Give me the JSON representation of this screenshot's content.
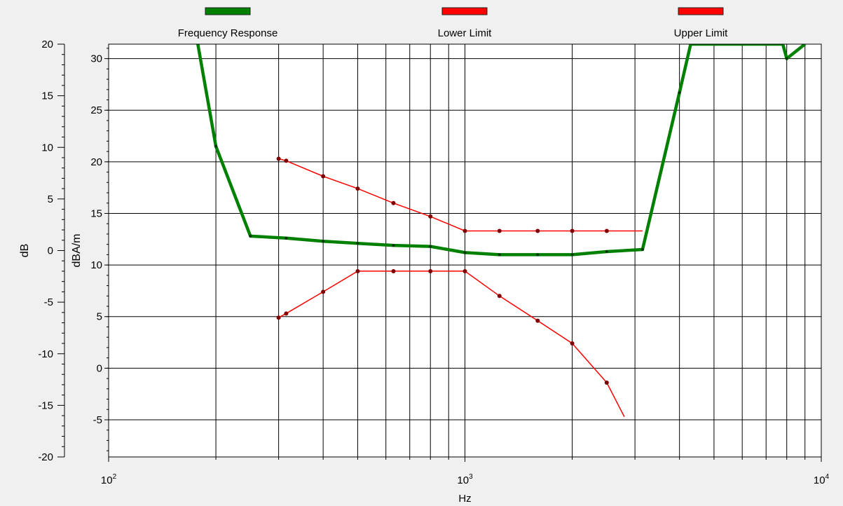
{
  "chart_data": {
    "type": "line",
    "xscale": "log",
    "xlabel": "Hz",
    "xlim": [
      100,
      10000
    ],
    "x_ticks": [
      100,
      1000,
      10000
    ],
    "x_tick_labels": [
      {
        "base": "10",
        "exp": "2"
      },
      {
        "base": "10",
        "exp": "3"
      },
      {
        "base": "10",
        "exp": "4"
      }
    ],
    "y_left": {
      "label": "dB",
      "lim": [
        -20,
        20
      ],
      "ticks": [
        -20,
        -15,
        -10,
        -5,
        0,
        5,
        10,
        15,
        20
      ],
      "tick_labels": [
        "-20",
        "-15",
        "-10",
        "-5",
        "0",
        "5",
        "10",
        "15",
        "20"
      ]
    },
    "y_right": {
      "label": "dBA/m",
      "lim": [
        -8.6,
        31.4
      ],
      "ticks": [
        -5,
        0,
        5,
        10,
        15,
        20,
        25,
        30
      ],
      "tick_labels": [
        "-5",
        "0",
        "5",
        "10",
        "15",
        "20",
        "25",
        "30"
      ]
    },
    "grid": true,
    "legend_position": "top",
    "series": [
      {
        "name": "Frequency Response",
        "color": "#008000",
        "axis": "right",
        "points": [
          [
            178,
            31.4
          ],
          [
            200,
            21.5
          ],
          [
            250,
            12.8
          ],
          [
            315,
            12.6
          ],
          [
            400,
            12.3
          ],
          [
            500,
            12.1
          ],
          [
            630,
            11.9
          ],
          [
            800,
            11.8
          ],
          [
            1000,
            11.2
          ],
          [
            1250,
            11.0
          ],
          [
            1600,
            11.0
          ],
          [
            2000,
            11.0
          ],
          [
            2500,
            11.3
          ],
          [
            3150,
            11.5
          ],
          [
            4000,
            26.7
          ],
          [
            4300,
            31.4
          ],
          [
            7800,
            31.4
          ],
          [
            8000,
            30.0
          ],
          [
            9000,
            31.4
          ]
        ]
      },
      {
        "name": "Lower Limit",
        "color": "#ff0000",
        "axis": "right",
        "marker_points": [
          [
            300,
            4.9
          ],
          [
            315,
            5.3
          ],
          [
            400,
            7.4
          ],
          [
            500,
            9.4
          ],
          [
            630,
            9.4
          ],
          [
            800,
            9.4
          ],
          [
            1000,
            9.4
          ],
          [
            1250,
            7.0
          ],
          [
            1600,
            4.6
          ],
          [
            2000,
            2.4
          ],
          [
            2500,
            -1.4
          ]
        ],
        "end_point": [
          2800,
          -4.7
        ]
      },
      {
        "name": "Upper Limit",
        "color": "#ff0000",
        "axis": "right",
        "marker_points": [
          [
            300,
            20.3
          ],
          [
            315,
            20.1
          ],
          [
            400,
            18.6
          ],
          [
            500,
            17.4
          ],
          [
            630,
            16.0
          ],
          [
            800,
            14.7
          ],
          [
            1000,
            13.3
          ],
          [
            1250,
            13.3
          ],
          [
            1600,
            13.3
          ],
          [
            2000,
            13.3
          ],
          [
            2500,
            13.3
          ]
        ],
        "end_point": [
          3150,
          13.3
        ]
      }
    ]
  }
}
